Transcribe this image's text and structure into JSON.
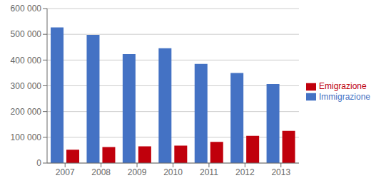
{
  "chart_data": {
    "type": "bar",
    "categories": [
      "2007",
      "2008",
      "2009",
      "2010",
      "2011",
      "2012",
      "2013"
    ],
    "series": [
      {
        "name": "Immigrazione",
        "color": "#4472C4",
        "values": [
          527000,
          498000,
          423000,
          446000,
          385000,
          350000,
          307000
        ]
      },
      {
        "name": "Emigrazione",
        "color": "#C0000C",
        "values": [
          52000,
          62000,
          65000,
          68000,
          82000,
          106000,
          125000
        ]
      }
    ],
    "ylim": [
      0,
      600000
    ],
    "yticks": [
      0,
      {
        "value": 100000,
        "label": "100 000"
      },
      {
        "value": 200000,
        "label": "200 000"
      },
      {
        "value": 300000,
        "label": "300 000"
      },
      {
        "value": 400000,
        "label": "400 000"
      },
      {
        "value": 500000,
        "label": "500 000"
      },
      {
        "value": 600000,
        "label": "600 000"
      }
    ],
    "grid": true,
    "legend": "right"
  }
}
